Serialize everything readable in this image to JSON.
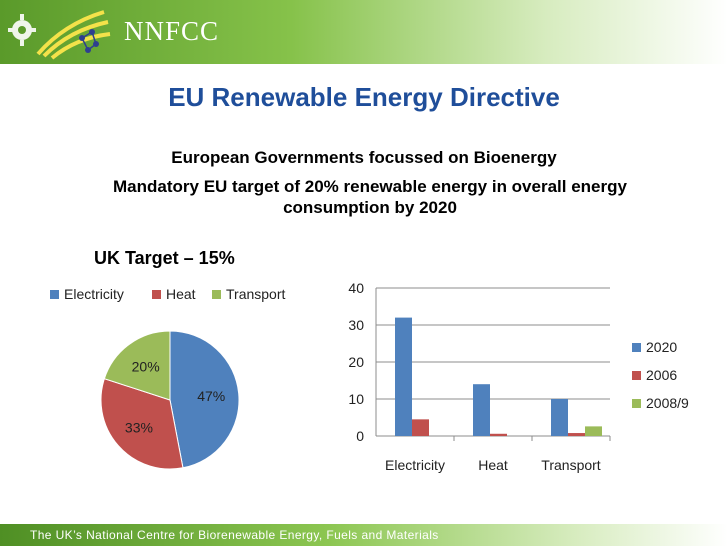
{
  "header": {
    "brand": "NNFCC"
  },
  "slide": {
    "title": "EU Renewable Energy Directive",
    "subtitle1": "European Governments focussed on Bioenergy",
    "subtitle2": "Mandatory EU target of 20% renewable energy in overall energy consumption by 2020"
  },
  "footer": {
    "text": "The UK’s National Centre for Biorenewable Energy, Fuels and Materials"
  },
  "colors": {
    "blue": "#4f81bd",
    "red": "#c0504d",
    "green": "#9bbb59"
  },
  "chart_data": [
    {
      "type": "pie",
      "title": "UK Target – 15%",
      "categories": [
        "Electricity",
        "Heat",
        "Transport"
      ],
      "values": [
        47,
        33,
        20
      ],
      "labels": [
        "47%",
        "33%",
        "20%"
      ],
      "legend": "top"
    },
    {
      "type": "bar",
      "categories": [
        "Electricity",
        "Heat",
        "Transport"
      ],
      "series": [
        {
          "name": "2020",
          "values": [
            32,
            14,
            10
          ]
        },
        {
          "name": "2006",
          "values": [
            4.5,
            0.6,
            0.8
          ]
        },
        {
          "name": "2008/9",
          "values": [
            null,
            null,
            2.6
          ]
        }
      ],
      "ylim": [
        0,
        40
      ],
      "yticks": [
        "0",
        "10",
        "20",
        "30",
        "40"
      ],
      "grid": true,
      "legend": "right"
    }
  ]
}
